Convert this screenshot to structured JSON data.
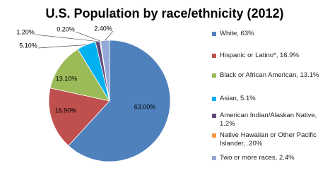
{
  "chart_data": {
    "type": "pie",
    "title": "U.S. Population by race/ethnicity (2012)",
    "categories": [
      "White, 63%",
      "Hispanic or Latino*, 16.9%",
      "Black or African American, 13.1%",
      "Asian, 5.1%",
      "American Indian/Alaskan Native, 1.2%",
      "Native Hawaiian or Other Pacific Islander, .20%",
      "Two or more races, 2.4%"
    ],
    "values": [
      63,
      16.9,
      13.1,
      5.1,
      1.2,
      0.2,
      2.4
    ],
    "value_labels": [
      "63.00%",
      "16.90%",
      "13.10%",
      "5.10%",
      "1.20%",
      "0.20%",
      "2.40%"
    ],
    "colors": [
      "#4f81bd",
      "#c0504d",
      "#9bbb59",
      "#00b0f0",
      "#604a7b",
      "#f79646",
      "#95a9d6"
    ],
    "legend": "right"
  }
}
